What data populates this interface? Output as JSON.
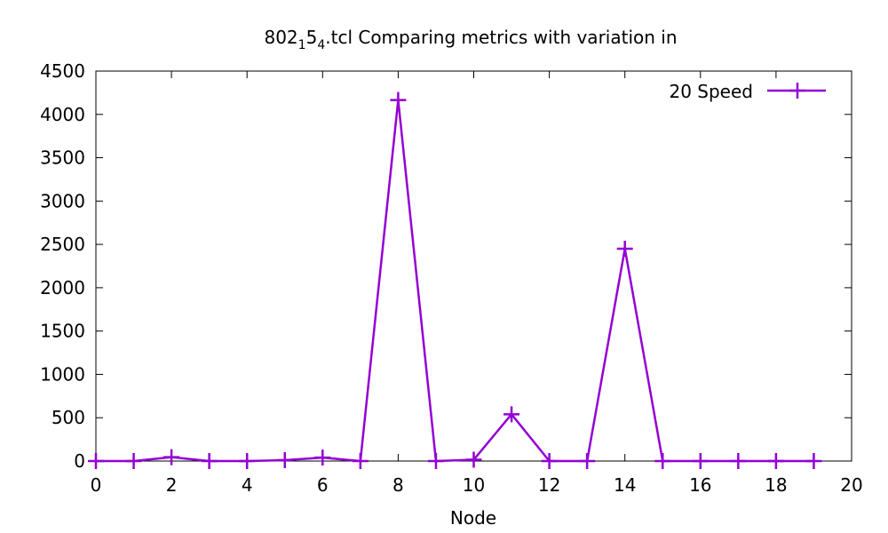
{
  "chart_data": {
    "type": "line",
    "title": {
      "prefix": "802",
      "sub1": "1",
      "mid": "5",
      "sub2": "4",
      "suffix": ".tcl Comparing metrics with variation in"
    },
    "xlabel": "Node",
    "ylabel": "",
    "xlim": [
      0,
      20
    ],
    "ylim": [
      0,
      4500
    ],
    "xticks": [
      0,
      2,
      4,
      6,
      8,
      10,
      12,
      14,
      16,
      18,
      20
    ],
    "yticks": [
      0,
      500,
      1000,
      1500,
      2000,
      2500,
      3000,
      3500,
      4000,
      4500
    ],
    "grid": false,
    "legend_position": "top-right",
    "series": [
      {
        "name": "20 Speed",
        "color": "#9400d3",
        "marker": "plus",
        "x": [
          0,
          1,
          2,
          3,
          4,
          5,
          6,
          7,
          8,
          9,
          10,
          11,
          12,
          13,
          14,
          15,
          16,
          17,
          18,
          19
        ],
        "y": [
          0,
          0,
          45,
          0,
          0,
          10,
          40,
          0,
          4165,
          0,
          15,
          540,
          0,
          0,
          2450,
          0,
          0,
          0,
          0,
          0
        ]
      }
    ]
  }
}
